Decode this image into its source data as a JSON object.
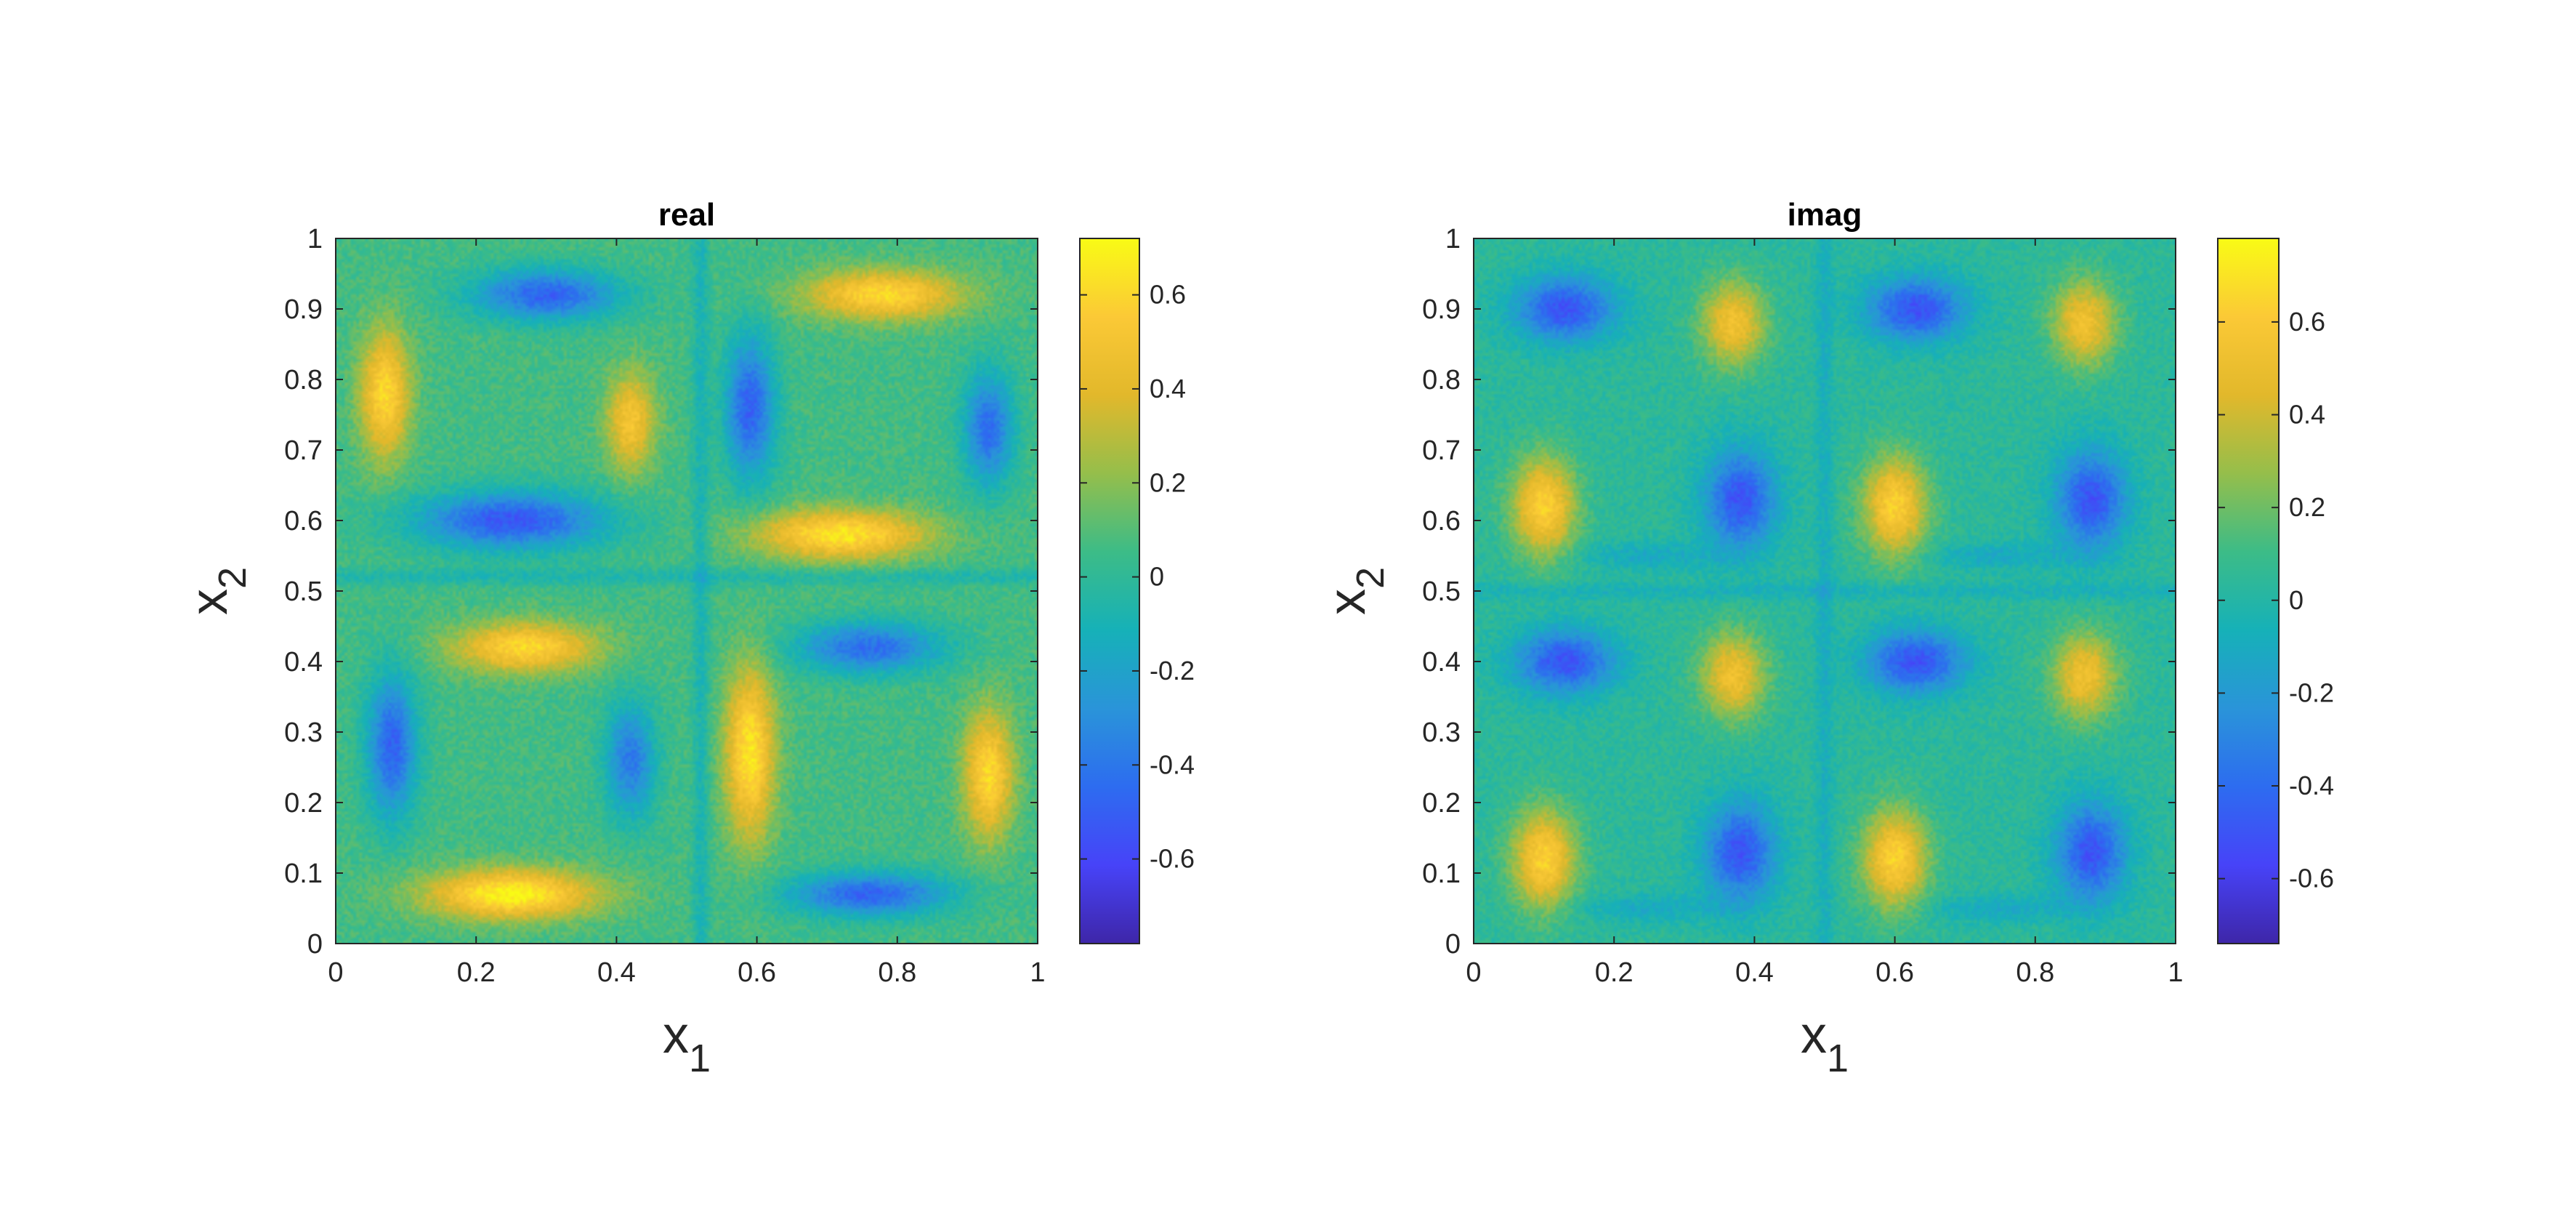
{
  "chart_data": [
    {
      "type": "heatmap",
      "title": "real",
      "xlabel": {
        "base": "x",
        "sub": "1"
      },
      "ylabel": {
        "base": "x",
        "sub": "2"
      },
      "xlim": [
        0,
        1
      ],
      "ylim": [
        0,
        1
      ],
      "xticks": [
        0,
        0.2,
        0.4,
        0.6,
        0.8,
        1
      ],
      "xtick_labels": [
        "0",
        "0.2",
        "0.4",
        "0.6",
        "0.8",
        "1"
      ],
      "yticks": [
        0,
        0.1,
        0.2,
        0.3,
        0.4,
        0.5,
        0.6,
        0.7,
        0.8,
        0.9,
        1
      ],
      "ytick_labels": [
        "0",
        "0.1",
        "0.2",
        "0.3",
        "0.4",
        "0.5",
        "0.6",
        "0.7",
        "0.8",
        "0.9",
        "1"
      ],
      "colorbar": {
        "clim": [
          -0.78,
          0.72
        ],
        "ticks": [
          -0.6,
          -0.4,
          -0.2,
          0,
          0.2,
          0.4,
          0.6
        ],
        "tick_labels": [
          "-0.6",
          "-0.4",
          "-0.2",
          "0",
          "0.2",
          "0.4",
          "0.6"
        ]
      },
      "colormap": [
        "#3e26a8",
        "#4743f8",
        "#2d6cf0",
        "#2a94d9",
        "#16b1b8",
        "#3cbc87",
        "#95be4b",
        "#e2b82b",
        "#fbc936",
        "#f9fb15"
      ],
      "grid": false,
      "legend": "none",
      "field": "smooth noisy field with four vortex-like quadrant cells; real part"
    },
    {
      "type": "heatmap",
      "title": "imag",
      "xlabel": {
        "base": "x",
        "sub": "1"
      },
      "ylabel": {
        "base": "x",
        "sub": "2"
      },
      "xlim": [
        0,
        1
      ],
      "ylim": [
        0,
        1
      ],
      "xticks": [
        0,
        0.2,
        0.4,
        0.6,
        0.8,
        1
      ],
      "xtick_labels": [
        "0",
        "0.2",
        "0.4",
        "0.6",
        "0.8",
        "1"
      ],
      "yticks": [
        0,
        0.1,
        0.2,
        0.3,
        0.4,
        0.5,
        0.6,
        0.7,
        0.8,
        0.9,
        1
      ],
      "ytick_labels": [
        "0",
        "0.1",
        "0.2",
        "0.3",
        "0.4",
        "0.5",
        "0.6",
        "0.7",
        "0.8",
        "0.9",
        "1"
      ],
      "colorbar": {
        "clim": [
          -0.74,
          0.78
        ],
        "ticks": [
          -0.6,
          -0.4,
          -0.2,
          0,
          0.2,
          0.4,
          0.6
        ],
        "tick_labels": [
          "-0.6",
          "-0.4",
          "-0.2",
          "0",
          "0.2",
          "0.4",
          "0.6"
        ]
      },
      "colormap": [
        "#3e26a8",
        "#4743f8",
        "#2d6cf0",
        "#2a94d9",
        "#16b1b8",
        "#3cbc87",
        "#95be4b",
        "#e2b82b",
        "#fbc936",
        "#f9fb15"
      ],
      "grid": false,
      "legend": "none",
      "field": "smooth noisy field with four vortex-like quadrant cells; imaginary part"
    }
  ]
}
